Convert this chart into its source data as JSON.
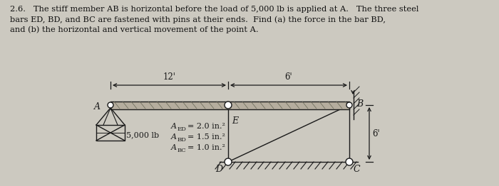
{
  "bg_color": "#ccc9c0",
  "line_color": "#1a1a1a",
  "beam_fill": "#b5ad9e",
  "text_color": "#111111",
  "title_line1": "2.6.   The stiff member AB is horizontal before the load of 5,000 lb is applied at A.   The three steel",
  "title_line2": "bars ED, BD, and BC are fastened with pins at their ends.  Find (a) the force in the bar BD,",
  "title_line3": "and (b) the horizontal and vertical movement of the point A.",
  "dim_12": "12'",
  "dim_6h": "6'",
  "dim_6v": "6'",
  "label_A": "A",
  "label_B": "B",
  "label_E": "E",
  "label_D": "D",
  "label_C": "C",
  "load_label": "5,000 lb",
  "area_ED": "A ED = 2.0 in.²",
  "area_BD": "A BD = 1.5 in.²",
  "area_BC": "A BC = 1.0 in.²"
}
